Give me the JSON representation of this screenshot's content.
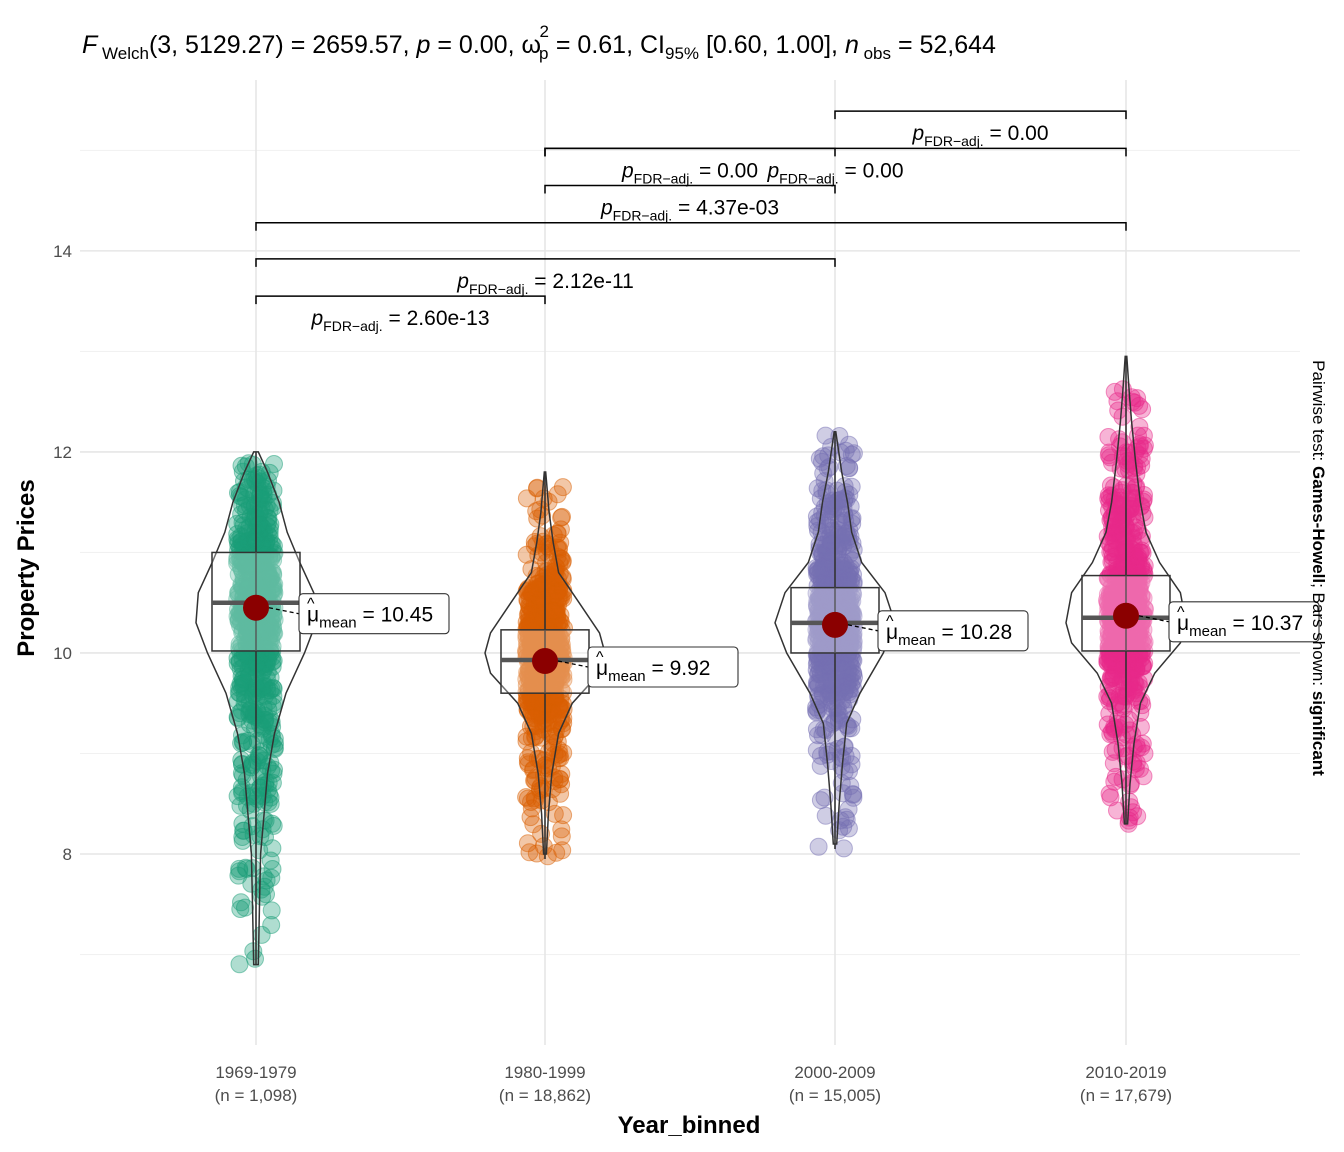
{
  "chart_data": {
    "type": "violin-box-scatter",
    "title": {
      "stat": "F",
      "stat_sub": "Welch",
      "args": "(3, 5129.27)",
      "stat_value": "2659.57",
      "p_label": "p",
      "p_value": "0.00",
      "effect_symbol": "ω",
      "effect_sub": "p",
      "effect_sup": "2",
      "effect_value": "0.61",
      "ci_label": "CI",
      "ci_sub": "95%",
      "ci_value": "[0.60, 1.00]",
      "n_label": "n",
      "n_sub": "obs",
      "n_value": "52,644"
    },
    "xlabel": "Year_binned",
    "ylabel": "Property Prices",
    "ylim": [
      6.1,
      15.7
    ],
    "yticks": [
      8,
      10,
      12,
      14
    ],
    "caption": {
      "prefix": "Pairwise test: ",
      "test": "Games-Howell",
      "middle": "; Bars shown: ",
      "shown": "significant"
    },
    "groups": [
      {
        "name": "1969-1979",
        "n_label": "(n = 1,098)",
        "color": "#1B9E77",
        "mean": 10.45,
        "mean_label": "10.45",
        "q1": 10.02,
        "median": 10.5,
        "q3": 11.0,
        "whisker_low": 6.9,
        "whisker_high": 12.0,
        "min": 6.9,
        "max": 12.0,
        "density": [
          [
            6.9,
            0.02
          ],
          [
            7.5,
            0.03
          ],
          [
            8.0,
            0.04
          ],
          [
            8.4,
            0.07
          ],
          [
            8.8,
            0.1
          ],
          [
            9.2,
            0.16
          ],
          [
            9.6,
            0.26
          ],
          [
            10.0,
            0.42
          ],
          [
            10.3,
            0.52
          ],
          [
            10.6,
            0.5
          ],
          [
            10.9,
            0.38
          ],
          [
            11.2,
            0.27
          ],
          [
            11.5,
            0.2
          ],
          [
            11.8,
            0.1
          ],
          [
            12.0,
            0.02
          ]
        ]
      },
      {
        "name": "1980-1999",
        "n_label": "(n = 18,862)",
        "color": "#D95F02",
        "mean": 9.92,
        "mean_label": "9.92",
        "q1": 9.6,
        "median": 9.93,
        "q3": 10.23,
        "whisker_low": 7.95,
        "whisker_high": 11.8,
        "min": 7.95,
        "max": 11.78,
        "density": [
          [
            8.0,
            0.02
          ],
          [
            8.4,
            0.05
          ],
          [
            8.8,
            0.1
          ],
          [
            9.2,
            0.2
          ],
          [
            9.5,
            0.4
          ],
          [
            9.8,
            0.8
          ],
          [
            10.0,
            0.88
          ],
          [
            10.2,
            0.8
          ],
          [
            10.5,
            0.5
          ],
          [
            10.8,
            0.2
          ],
          [
            11.1,
            0.12
          ],
          [
            11.4,
            0.06
          ],
          [
            11.8,
            0.01
          ]
        ]
      },
      {
        "name": "2000-2009",
        "n_label": "(n = 15,005)",
        "color": "#7570B3",
        "mean": 10.28,
        "mean_label": "10.28",
        "q1": 10.0,
        "median": 10.3,
        "q3": 10.65,
        "whisker_low": 8.05,
        "whisker_high": 12.2,
        "min": 8.05,
        "max": 12.2,
        "density": [
          [
            8.1,
            0.02
          ],
          [
            8.5,
            0.05
          ],
          [
            8.9,
            0.09
          ],
          [
            9.3,
            0.14
          ],
          [
            9.6,
            0.3
          ],
          [
            10.0,
            0.58
          ],
          [
            10.3,
            0.72
          ],
          [
            10.6,
            0.6
          ],
          [
            10.9,
            0.32
          ],
          [
            11.2,
            0.2
          ],
          [
            11.5,
            0.15
          ],
          [
            11.8,
            0.08
          ],
          [
            12.2,
            0.01
          ]
        ]
      },
      {
        "name": "2010-2019",
        "n_label": "(n = 17,679)",
        "color": "#E7298A",
        "mean": 10.37,
        "mean_label": "10.37",
        "q1": 10.02,
        "median": 10.35,
        "q3": 10.77,
        "whisker_low": 8.3,
        "whisker_high": 12.95,
        "min": 8.3,
        "max": 12.95,
        "density": [
          [
            8.3,
            0.02
          ],
          [
            8.7,
            0.05
          ],
          [
            9.1,
            0.1
          ],
          [
            9.5,
            0.18
          ],
          [
            9.8,
            0.36
          ],
          [
            10.1,
            0.68
          ],
          [
            10.3,
            0.75
          ],
          [
            10.6,
            0.68
          ],
          [
            10.9,
            0.42
          ],
          [
            11.2,
            0.25
          ],
          [
            11.5,
            0.18
          ],
          [
            11.9,
            0.12
          ],
          [
            12.3,
            0.07
          ],
          [
            12.6,
            0.04
          ],
          [
            12.95,
            0.01
          ]
        ]
      }
    ],
    "pairwise": [
      {
        "from": 0,
        "to": 1,
        "label_sub": "FDR−adj.",
        "value": "2.60e-13",
        "y": 13.55
      },
      {
        "from": 0,
        "to": 2,
        "label_sub": "FDR−adj.",
        "value": "2.12e-11",
        "y": 13.92
      },
      {
        "from": 0,
        "to": 3,
        "label_sub": "FDR−adj.",
        "value": "",
        "y": 14.28
      },
      {
        "from": 1,
        "to": 2,
        "label_sub": "FDR−adj.",
        "value": "4.37e-03",
        "y": 14.65
      },
      {
        "from": 1,
        "to": 2,
        "label_sub": "FDR−adj.",
        "value": "0.00",
        "y": 15.02
      },
      {
        "from": 1,
        "to": 3,
        "label_sub": "FDR−adj.",
        "value": "0.00",
        "y": 15.02
      },
      {
        "from": 2,
        "to": 3,
        "label_sub": "FDR−adj.",
        "value": "0.00",
        "y": 15.39
      }
    ]
  }
}
